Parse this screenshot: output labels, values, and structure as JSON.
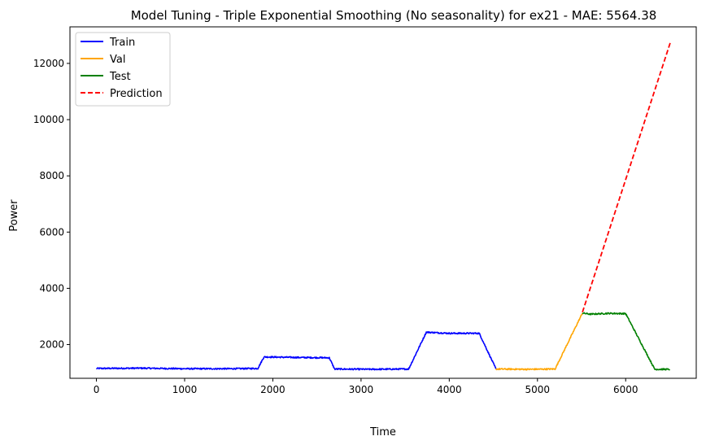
{
  "chart_data": {
    "type": "line",
    "title": "Model Tuning - Triple Exponential Smoothing (No seasonality) for ex21 - MAE: 5564.38",
    "xlabel": "Time",
    "ylabel": "Power",
    "xlim": [
      -300,
      6800
    ],
    "ylim": [
      800,
      13300
    ],
    "xticks": [
      0,
      1000,
      2000,
      3000,
      4000,
      5000,
      6000
    ],
    "yticks": [
      2000,
      4000,
      6000,
      8000,
      10000,
      12000
    ],
    "grid": false,
    "legend_position": "top-left",
    "series": [
      {
        "name": "Train",
        "color": "#0000ff",
        "style": "solid",
        "noise": 25,
        "points": [
          [
            0,
            1150
          ],
          [
            500,
            1160
          ],
          [
            1000,
            1140
          ],
          [
            1500,
            1140
          ],
          [
            1830,
            1150
          ],
          [
            1900,
            1560
          ],
          [
            2300,
            1540
          ],
          [
            2640,
            1530
          ],
          [
            2700,
            1130
          ],
          [
            3100,
            1120
          ],
          [
            3540,
            1130
          ],
          [
            3740,
            2440
          ],
          [
            4000,
            2400
          ],
          [
            4340,
            2400
          ],
          [
            4530,
            1130
          ]
        ]
      },
      {
        "name": "Val",
        "color": "#ffa500",
        "style": "solid",
        "noise": 25,
        "points": [
          [
            4530,
            1130
          ],
          [
            4900,
            1120
          ],
          [
            5200,
            1130
          ],
          [
            5510,
            3120
          ]
        ]
      },
      {
        "name": "Test",
        "color": "#008000",
        "style": "solid",
        "noise": 25,
        "points": [
          [
            5510,
            3120
          ],
          [
            5600,
            3080
          ],
          [
            5800,
            3110
          ],
          [
            6000,
            3100
          ],
          [
            6330,
            1120
          ],
          [
            6500,
            1120
          ]
        ]
      },
      {
        "name": "Prediction",
        "color": "#ff0000",
        "style": "dashed",
        "points": [
          [
            5510,
            3150
          ],
          [
            6510,
            12780
          ]
        ]
      }
    ]
  }
}
